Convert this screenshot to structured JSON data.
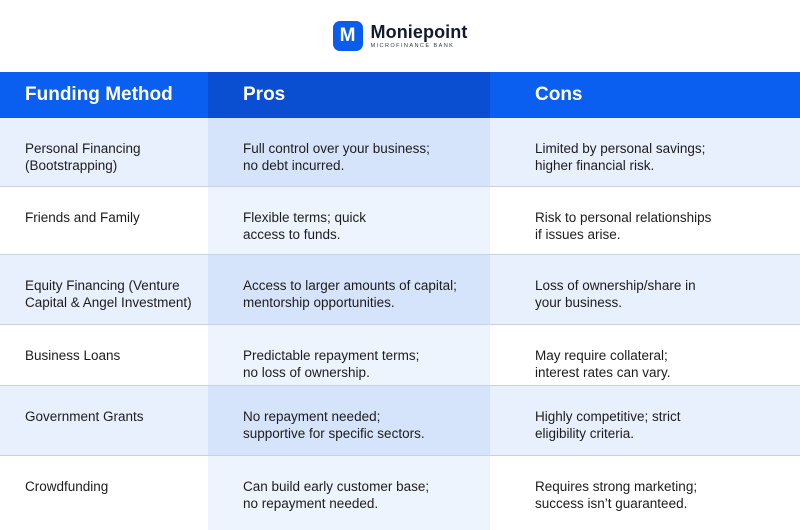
{
  "brand": {
    "logo_letter": "M",
    "name": "Moniepoint",
    "subtitle": "MICROFINANCE BANK",
    "color": "#0a5dea"
  },
  "table": {
    "headers": {
      "method": "Funding Method",
      "pros": "Pros",
      "cons": "Cons"
    },
    "rows": [
      {
        "method": "Personal Financing\n(Bootstrapping)",
        "pros": "Full control over your business;\nno debt incurred.",
        "cons": "Limited by personal savings;\nhigher financial risk."
      },
      {
        "method": "Friends and Family",
        "pros": "Flexible terms; quick\naccess to funds.",
        "cons": "Risk to personal relationships\nif issues arise."
      },
      {
        "method": "Equity Financing (Venture\nCapital & Angel Investment)",
        "pros": "Access to larger amounts of capital;\nmentorship opportunities.",
        "cons": "Loss of ownership/share in\nyour business."
      },
      {
        "method": "Business Loans",
        "pros": "Predictable repayment terms;\nno loss of ownership.",
        "cons": "May require collateral;\ninterest rates can vary."
      },
      {
        "method": "Government Grants",
        "pros": "No repayment needed;\nsupportive for specific sectors.",
        "cons": "Highly competitive; strict\neligibility criteria."
      },
      {
        "method": "Crowdfunding",
        "pros": "Can build early customer base;\nno repayment needed.",
        "cons": "Requires strong marketing;\nsuccess isn’t guaranteed."
      }
    ]
  },
  "colors": {
    "header_blue": "#0b5ff0",
    "header_pros_blue": "#0a4fd1",
    "row_tint": "#e8f0fd"
  }
}
